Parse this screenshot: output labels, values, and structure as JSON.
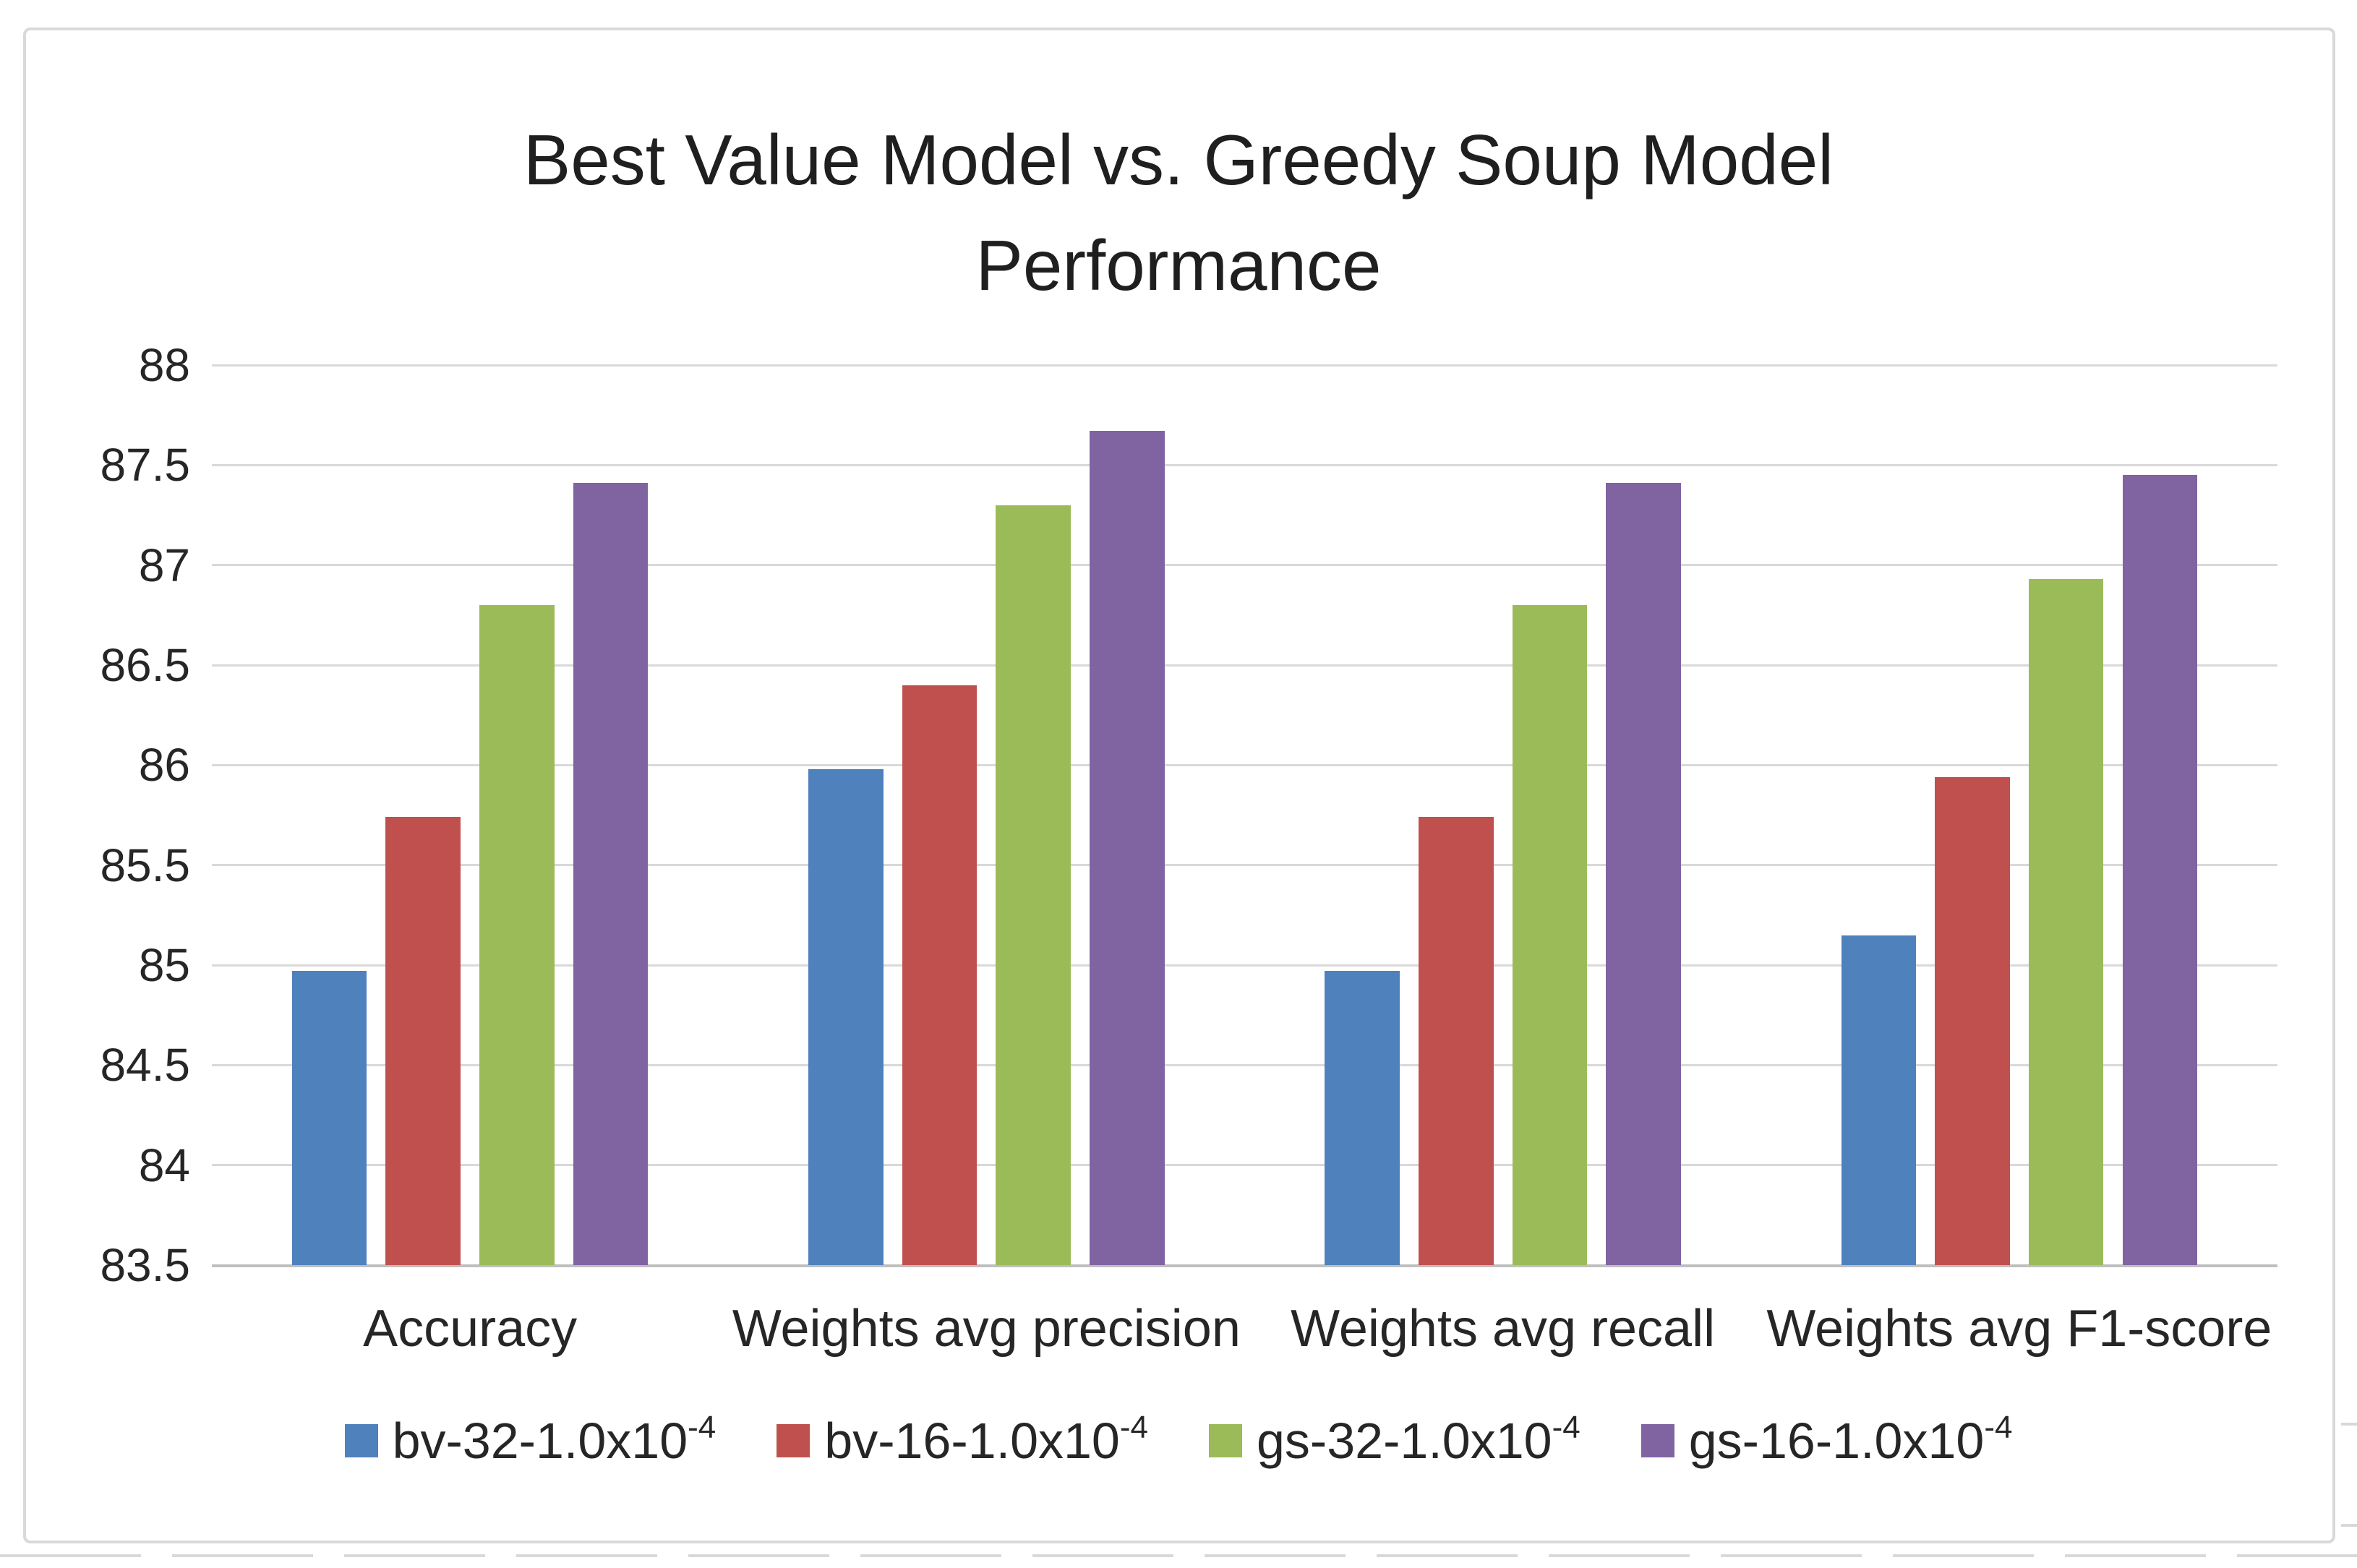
{
  "chart_data": {
    "type": "bar",
    "title": "Best Value Model vs. Greedy Soup Model Performance",
    "title_lines": [
      "Best Value Model vs. Greedy Soup Model",
      "Performance"
    ],
    "categories": [
      "Accuracy",
      "Weights avg precision",
      "Weights avg recall",
      "Weights avg F1-score"
    ],
    "series": [
      {
        "name": "bv-32-1.0x10^-4",
        "label_base": "bv-32-1.0x10",
        "label_exp": "-4",
        "color": "#4F81BD",
        "values": [
          84.97,
          85.98,
          84.97,
          85.15
        ]
      },
      {
        "name": "bv-16-1.0x10^-4",
        "label_base": "bv-16-1.0x10",
        "label_exp": "-4",
        "color": "#C0504D",
        "values": [
          85.74,
          86.4,
          85.74,
          85.94
        ]
      },
      {
        "name": "gs-32-1.0x10^-4",
        "label_base": "gs-32-1.0x10",
        "label_exp": "-4",
        "color": "#9BBB59",
        "values": [
          86.8,
          87.3,
          86.8,
          86.93
        ]
      },
      {
        "name": "gs-16-1.0x10^-4",
        "label_base": "gs-16-1.0x10",
        "label_exp": "-4",
        "color": "#8064A2",
        "values": [
          87.41,
          87.67,
          87.41,
          87.45
        ]
      }
    ],
    "y_axis": {
      "min": 83.5,
      "max": 88,
      "step": 0.5,
      "ticks": [
        88,
        87.5,
        87,
        86.5,
        86,
        85.5,
        85,
        84.5,
        84,
        83.5
      ]
    },
    "grid": true,
    "legend_position": "bottom",
    "colors": {
      "gridline": "#D9D9D9",
      "axis_line": "#BFBFBF",
      "frame_border": "#D9D9D9",
      "text": "#262626",
      "background": "#FFFFFF"
    }
  }
}
